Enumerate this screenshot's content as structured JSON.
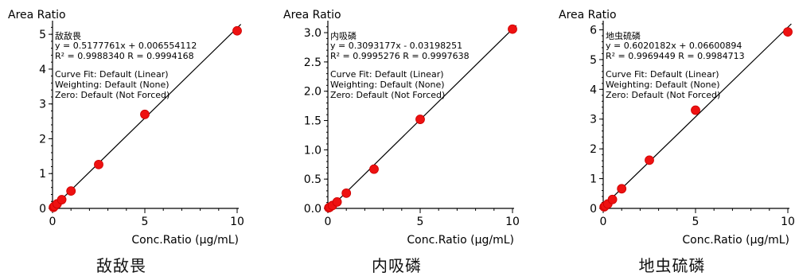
{
  "chart_data": [
    {
      "type": "scatter",
      "title": "",
      "ylabel": "Area Ratio",
      "xlabel": "Conc.Ratio (μg/mL)",
      "caption": "敌敌畏",
      "compound": "敌敌畏",
      "equation": "y = 0.5177761x + 0.006554112",
      "r2_line": "R² = 0.9988340    R = 0.9994168",
      "curve_fit": "Curve Fit: Default (Linear)",
      "weighting": "Weighting: Default (None)",
      "zero": "Zero: Default (Not Forced)",
      "xlim": [
        0,
        10
      ],
      "ylim": [
        0,
        5.3
      ],
      "xticks": [
        0,
        5,
        10
      ],
      "yticks": [
        0,
        1,
        2,
        3,
        4,
        5
      ],
      "yticklabels": [
        "0",
        "1",
        "2",
        "3",
        "4",
        "5"
      ],
      "fit": {
        "slope": 0.5177761,
        "intercept": 0.006554112
      },
      "points": [
        {
          "x": 0.05,
          "y": 0.03
        },
        {
          "x": 0.1,
          "y": 0.06
        },
        {
          "x": 0.25,
          "y": 0.13
        },
        {
          "x": 0.5,
          "y": 0.25
        },
        {
          "x": 1,
          "y": 0.5
        },
        {
          "x": 2.5,
          "y": 1.26
        },
        {
          "x": 5,
          "y": 2.7
        },
        {
          "x": 10,
          "y": 5.1
        }
      ]
    },
    {
      "type": "scatter",
      "title": "",
      "ylabel": "Area Ratio",
      "xlabel": "Conc.Ratio (μg/mL)",
      "caption": "内吸磷",
      "compound": "内吸磷",
      "equation": "y = 0.3093177x - 0.03198251",
      "r2_line": "R² = 0.9995276    R = 0.9997638",
      "curve_fit": "Curve Fit: Default (Linear)",
      "weighting": "Weighting: Default (None)",
      "zero": "Zero: Default (Not Forced)",
      "xlim": [
        0,
        10
      ],
      "ylim": [
        0,
        3.15
      ],
      "xticks": [
        0,
        5,
        10
      ],
      "yticks": [
        0,
        0.5,
        1,
        1.5,
        2,
        2.5,
        3
      ],
      "yticklabels": [
        "0.0",
        "0.5",
        "1.0",
        "1.5",
        "2.0",
        "2.5",
        "3.0"
      ],
      "fit": {
        "slope": 0.3093177,
        "intercept": -0.03198251
      },
      "points": [
        {
          "x": 0.05,
          "y": 0.01
        },
        {
          "x": 0.1,
          "y": 0.02
        },
        {
          "x": 0.25,
          "y": 0.05
        },
        {
          "x": 0.5,
          "y": 0.11
        },
        {
          "x": 1,
          "y": 0.26
        },
        {
          "x": 2.5,
          "y": 0.67
        },
        {
          "x": 5,
          "y": 1.52
        },
        {
          "x": 10,
          "y": 3.06
        }
      ]
    },
    {
      "type": "scatter",
      "title": "",
      "ylabel": "Area Ratio",
      "xlabel": "Conc.Ratio (μg/mL)",
      "caption": "地虫硫磷",
      "compound": "地虫硫磷",
      "equation": "y = 0.6020182x + 0.06600894",
      "r2_line": "R² = 0.9969449    R = 0.9984713",
      "curve_fit": "Curve Fit: Default (Linear)",
      "weighting": "Weighting: Default (None)",
      "zero": "Zero: Default (Not Forced)",
      "xlim": [
        0,
        10
      ],
      "ylim": [
        0,
        6.2
      ],
      "xticks": [
        0,
        5,
        10
      ],
      "yticks": [
        0,
        1,
        2,
        3,
        4,
        5,
        6
      ],
      "yticklabels": [
        "0",
        "1",
        "2",
        "3",
        "4",
        "5",
        "6"
      ],
      "fit": {
        "slope": 0.6020182,
        "intercept": 0.06600894
      },
      "points": [
        {
          "x": 0.05,
          "y": 0.05
        },
        {
          "x": 0.1,
          "y": 0.08
        },
        {
          "x": 0.25,
          "y": 0.15
        },
        {
          "x": 0.5,
          "y": 0.3
        },
        {
          "x": 1,
          "y": 0.66
        },
        {
          "x": 2.5,
          "y": 1.62
        },
        {
          "x": 5,
          "y": 3.3
        },
        {
          "x": 10,
          "y": 5.93
        }
      ]
    }
  ]
}
